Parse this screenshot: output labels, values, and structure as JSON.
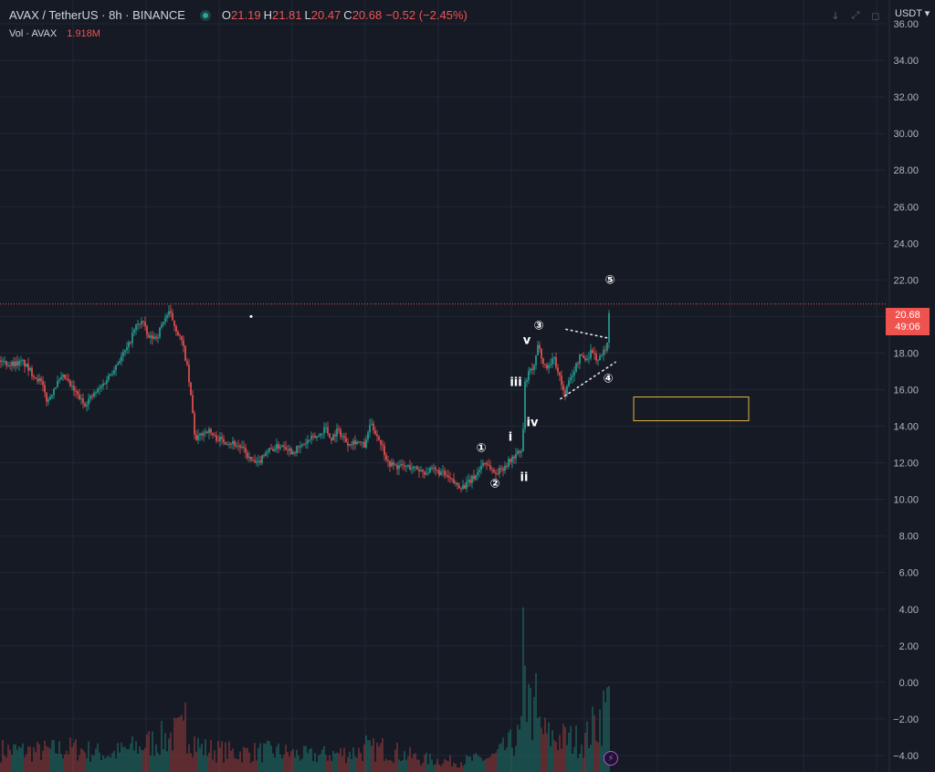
{
  "header": {
    "symbol": "AVAX / TetherUS · 8h · BINANCE",
    "open_label": "O",
    "open": "21.19",
    "high_label": "H",
    "high": "21.81",
    "low_label": "L",
    "low": "20.47",
    "close_label": "C",
    "close": "20.68",
    "change": "−0.52 (−2.45%)"
  },
  "volume_legend": {
    "label": "Vol · AVAX",
    "value": "1.918M"
  },
  "currency": "USDT",
  "last_price": {
    "price": "20.68",
    "countdown": "49:06"
  },
  "toolbar": {
    "down_icon": "↓",
    "expand_icon": "⤢",
    "fullscreen_icon": "◻"
  },
  "lightning_icon": "⚡",
  "colors": {
    "up": "#26a69a",
    "down": "#ef5350",
    "background": "#161a25",
    "grid": "#232734",
    "box": "#e3b341",
    "last_line": "#ef5350"
  },
  "chart_data": {
    "type": "candlestick",
    "ylim": [
      -4.9,
      37.3
    ],
    "y_ticks": [
      "36.00",
      "34.00",
      "32.00",
      "30.00",
      "28.00",
      "26.00",
      "24.00",
      "22.00",
      "20.00",
      "18.00",
      "16.00",
      "14.00",
      "12.00",
      "10.00",
      "8.00",
      "6.00",
      "4.00",
      "2.00",
      "0.00",
      "−2.00",
      "−4.00"
    ],
    "y_tick_values": [
      36,
      34,
      32,
      30,
      28,
      26,
      24,
      22,
      20,
      18,
      16,
      14,
      12,
      10,
      8,
      6,
      4,
      2,
      0,
      -2,
      -4
    ],
    "last_price_value": 20.68,
    "price_path": [
      [
        0,
        17.6
      ],
      [
        10,
        17.4
      ],
      [
        25,
        17.5
      ],
      [
        35,
        16.9
      ],
      [
        45,
        16.4
      ],
      [
        52,
        15.3
      ],
      [
        60,
        16.2
      ],
      [
        70,
        16.7
      ],
      [
        80,
        16.0
      ],
      [
        92,
        15.2
      ],
      [
        100,
        15.6
      ],
      [
        110,
        16.1
      ],
      [
        120,
        16.8
      ],
      [
        130,
        17.6
      ],
      [
        140,
        18.3
      ],
      [
        148,
        19.4
      ],
      [
        156,
        19.8
      ],
      [
        162,
        18.8
      ],
      [
        172,
        18.9
      ],
      [
        180,
        19.9
      ],
      [
        186,
        20.2
      ],
      [
        193,
        19.3
      ],
      [
        200,
        18.5
      ],
      [
        205,
        17.2
      ],
      [
        210,
        15.2
      ],
      [
        214,
        13.1
      ],
      [
        220,
        13.6
      ],
      [
        228,
        13.8
      ],
      [
        235,
        13.4
      ],
      [
        245,
        13.2
      ],
      [
        255,
        13.1
      ],
      [
        265,
        12.8
      ],
      [
        275,
        12.1
      ],
      [
        282,
        11.9
      ],
      [
        290,
        12.6
      ],
      [
        300,
        12.8
      ],
      [
        310,
        13.0
      ],
      [
        320,
        12.6
      ],
      [
        330,
        12.9
      ],
      [
        340,
        13.3
      ],
      [
        350,
        13.5
      ],
      [
        356,
        14.0
      ],
      [
        362,
        13.3
      ],
      [
        370,
        13.8
      ],
      [
        380,
        13.1
      ],
      [
        390,
        13.2
      ],
      [
        400,
        12.9
      ],
      [
        405,
        14.1
      ],
      [
        410,
        13.8
      ],
      [
        418,
        13.0
      ],
      [
        425,
        12.0
      ],
      [
        435,
        11.8
      ],
      [
        445,
        11.8
      ],
      [
        455,
        11.7
      ],
      [
        465,
        11.5
      ],
      [
        475,
        11.6
      ],
      [
        485,
        11.4
      ],
      [
        492,
        11.1
      ],
      [
        500,
        10.8
      ],
      [
        508,
        10.7
      ],
      [
        515,
        11.0
      ],
      [
        522,
        11.4
      ],
      [
        530,
        12.1
      ],
      [
        536,
        11.8
      ],
      [
        542,
        11.4
      ],
      [
        550,
        11.7
      ],
      [
        558,
        12.1
      ],
      [
        566,
        12.5
      ],
      [
        572,
        12.6
      ],
      [
        575,
        16.3
      ],
      [
        580,
        17.0
      ],
      [
        585,
        17.2
      ],
      [
        590,
        18.6
      ],
      [
        595,
        17.4
      ],
      [
        600,
        17.2
      ],
      [
        606,
        17.8
      ],
      [
        612,
        16.9
      ],
      [
        618,
        15.7
      ],
      [
        623,
        16.4
      ],
      [
        630,
        17.2
      ],
      [
        636,
        17.9
      ],
      [
        642,
        17.6
      ],
      [
        648,
        18.2
      ],
      [
        654,
        17.6
      ],
      [
        660,
        17.9
      ],
      [
        663,
        18.3
      ],
      [
        665,
        18.5
      ],
      [
        668,
        20.9
      ]
    ],
    "volume_path": [
      [
        0,
        1.5
      ],
      [
        40,
        1.4
      ],
      [
        80,
        1.6
      ],
      [
        120,
        1.2
      ],
      [
        160,
        1.9
      ],
      [
        205,
        2.8
      ],
      [
        220,
        1.6
      ],
      [
        260,
        1.3
      ],
      [
        300,
        1.4
      ],
      [
        340,
        1.1
      ],
      [
        380,
        1.3
      ],
      [
        420,
        1.6
      ],
      [
        460,
        0.9
      ],
      [
        500,
        0.7
      ],
      [
        540,
        1.0
      ],
      [
        570,
        2.4
      ],
      [
        575,
        5.5
      ],
      [
        585,
        3.5
      ],
      [
        600,
        2.4
      ],
      [
        640,
        2.1
      ],
      [
        668,
        4.8
      ]
    ],
    "volume_spikes": [
      [
        203,
        3.8
      ],
      [
        154,
        1.4
      ],
      [
        573,
        9.0
      ],
      [
        587,
        5.4
      ],
      [
        579,
        4.8
      ],
      [
        402,
        2.0
      ],
      [
        667,
        4.7
      ]
    ],
    "annotations": [
      {
        "text": "①",
        "x": 527,
        "y": 12.8
      },
      {
        "text": "②",
        "x": 542,
        "y": 10.85
      },
      {
        "text": "i",
        "x": 559,
        "y": 13.4
      },
      {
        "text": "ii",
        "x": 574,
        "y": 11.2
      },
      {
        "text": "iii",
        "x": 565,
        "y": 16.4
      },
      {
        "text": "iv",
        "x": 583,
        "y": 14.2
      },
      {
        "text": "v",
        "x": 577,
        "y": 18.7
      },
      {
        "text": "③",
        "x": 590,
        "y": 19.5
      },
      {
        "text": "④",
        "x": 666,
        "y": 16.6
      },
      {
        "text": "⑤",
        "x": 668,
        "y": 22.0
      }
    ],
    "trendlines": [
      {
        "x1": 620,
        "y1": 19.3,
        "x2": 668,
        "y2": 18.8
      },
      {
        "x1": 614,
        "y1": 15.5,
        "x2": 674,
        "y2": 17.5
      }
    ],
    "box": {
      "x1": 694,
      "x2": 820,
      "y_top": 15.6,
      "y_bottom": 14.3
    },
    "marker_dot": {
      "x": 275,
      "y": 20.0
    }
  }
}
